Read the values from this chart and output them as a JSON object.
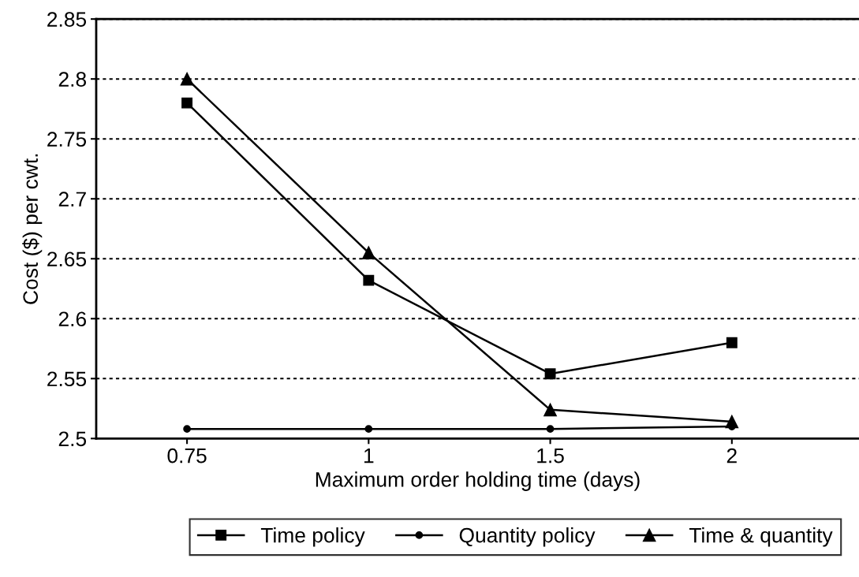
{
  "chart_data": {
    "type": "line",
    "xlabel": "Maximum order holding time (days)",
    "ylabel": "Cost ($) per cwt.",
    "categories": [
      "0.75",
      "1",
      "1.5",
      "2"
    ],
    "series": [
      {
        "name": "Time policy",
        "color": "#000000",
        "marker": "square",
        "values": [
          2.78,
          2.632,
          2.554,
          2.58
        ]
      },
      {
        "name": "Quantity policy",
        "color": "#000000",
        "marker": "circle",
        "values": [
          2.508,
          2.508,
          2.508,
          2.51
        ]
      },
      {
        "name": "Time & quantity",
        "color": "#000000",
        "marker": "triangle",
        "values": [
          2.8,
          2.655,
          2.524,
          2.514
        ]
      }
    ],
    "ylim": [
      2.5,
      2.85
    ],
    "yticks": [
      2.5,
      2.55,
      2.6,
      2.65,
      2.7,
      2.75,
      2.8,
      2.85
    ],
    "grid": "y",
    "legend": "bottom",
    "line_style": "solid"
  }
}
